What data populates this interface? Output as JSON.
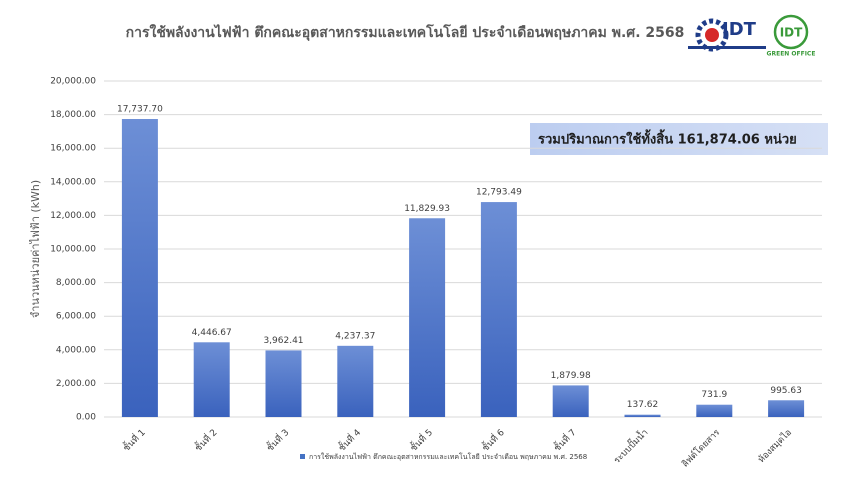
{
  "chart_data": {
    "type": "bar",
    "title": "การใช้พลังงานไฟฟ้า ตึกคณะอุตสาหกรรมและเทคโนโลยี ประจำเดือนพฤษภาคม พ.ศ. 2568",
    "y_label": "จำนวนหน่วยค่าไฟฟ้า (kWh)",
    "annotation": "รวมปริมาณการใช้ทั้งสิ้น 161,874.06 หน่วย",
    "logos": [
      "IDT",
      "IDT",
      "GREEN OFFICE"
    ],
    "categories": [
      "ชั้นที่ 1",
      "ชั้นที่ 2",
      "ชั้นที่ 3",
      "ชั้นที่ 4",
      "ชั้นที่ 5",
      "ชั้นที่ 6",
      "ชั้นที่ 7",
      "ระบบปั๊มน้ำ",
      "ลิฟต์โดยสาร",
      "ห้องสมุดไอ"
    ],
    "series": [
      {
        "name": "การใช้พลังงานไฟฟ้า ตึกคณะอุตสาหกรรมและเทคโนโลยี ประจำเดือน พฤษภาคม พ.ศ. 2568",
        "color": "#4472c4",
        "values": [
          17737.7,
          4446.67,
          3962.41,
          4237.37,
          11829.93,
          12793.49,
          1879.98,
          137.62,
          731.9,
          995.63
        ],
        "value_labels": [
          "17,737.70",
          "4,446.67",
          "3,962.41",
          "4,237.37",
          "11,829.93",
          "12,793.49",
          "1,879.98",
          "137.62",
          "731.9",
          "995.63"
        ]
      }
    ],
    "ylim": [
      0,
      20000
    ],
    "yticks": [
      {
        "value": 0,
        "label": "0.00"
      },
      {
        "value": 2000,
        "label": "2,000.00"
      },
      {
        "value": 4000,
        "label": "4,000.00"
      },
      {
        "value": 6000,
        "label": "6,000.00"
      },
      {
        "value": 8000,
        "label": "8,000.00"
      },
      {
        "value": 10000,
        "label": "10,000.00"
      },
      {
        "value": 12000,
        "label": "12,000.00"
      },
      {
        "value": 14000,
        "label": "14,000.00"
      },
      {
        "value": 16000,
        "label": "16,000.00"
      },
      {
        "value": 18000,
        "label": "18,000.00"
      },
      {
        "value": 20000,
        "label": "20,000.00"
      }
    ],
    "grid": true
  }
}
